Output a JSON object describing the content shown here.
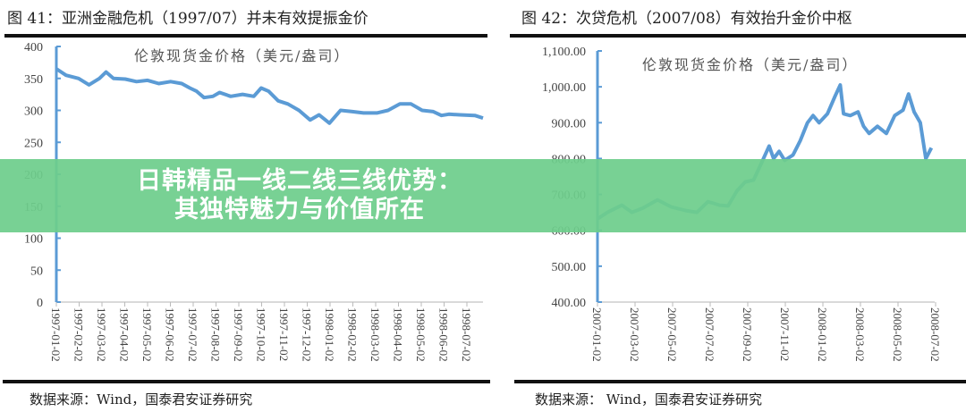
{
  "banner": {
    "text": "日韩精品一线二线三线优势：其独特魅力与价值所在"
  },
  "chart_data": [
    {
      "type": "line",
      "title": "图 41：亚洲金融危机（1997/07）并未有效提振金价",
      "subtitle": "伦敦现货金价格（美元/盎司）",
      "source": "数据来源：Wind，国泰君安证券研究",
      "ylim": [
        0,
        400
      ],
      "yticks": [
        "0",
        "50",
        "100",
        "150",
        "200",
        "250",
        "300",
        "350",
        "400"
      ],
      "xticks": [
        "1997-01-02",
        "1997-02-02",
        "1997-03-02",
        "1997-04-02",
        "1997-05-02",
        "1997-06-02",
        "1997-07-02",
        "1997-08-02",
        "1997-09-02",
        "1997-10-02",
        "1997-11-02",
        "1997-12-02",
        "1998-01-02",
        "1998-02-02",
        "1998-03-02",
        "1998-04-02",
        "1998-05-02",
        "1998-06-02",
        "1998-07-02"
      ],
      "color": "#5b9bd5",
      "points": [
        [
          "1997-01-02",
          365
        ],
        [
          "1997-01-15",
          355
        ],
        [
          "1997-02-01",
          350
        ],
        [
          "1997-02-15",
          340
        ],
        [
          "1997-03-01",
          350
        ],
        [
          "1997-03-10",
          360
        ],
        [
          "1997-03-20",
          350
        ],
        [
          "1997-04-05",
          349
        ],
        [
          "1997-04-20",
          345
        ],
        [
          "1997-05-05",
          347
        ],
        [
          "1997-05-20",
          342
        ],
        [
          "1997-06-05",
          345
        ],
        [
          "1997-06-20",
          342
        ],
        [
          "1997-07-01",
          335
        ],
        [
          "1997-07-10",
          330
        ],
        [
          "1997-07-20",
          320
        ],
        [
          "1997-08-01",
          322
        ],
        [
          "1997-08-10",
          328
        ],
        [
          "1997-08-25",
          322
        ],
        [
          "1997-09-10",
          325
        ],
        [
          "1997-09-25",
          322
        ],
        [
          "1997-10-05",
          335
        ],
        [
          "1997-10-15",
          330
        ],
        [
          "1997-10-28",
          315
        ],
        [
          "1997-11-10",
          310
        ],
        [
          "1997-11-25",
          300
        ],
        [
          "1997-12-10",
          285
        ],
        [
          "1997-12-22",
          293
        ],
        [
          "1998-01-05",
          280
        ],
        [
          "1998-01-20",
          300
        ],
        [
          "1998-02-05",
          298
        ],
        [
          "1998-02-20",
          296
        ],
        [
          "1998-03-10",
          296
        ],
        [
          "1998-03-25",
          300
        ],
        [
          "1998-04-10",
          310
        ],
        [
          "1998-04-25",
          310
        ],
        [
          "1998-05-10",
          300
        ],
        [
          "1998-05-25",
          298
        ],
        [
          "1998-06-05",
          292
        ],
        [
          "1998-06-15",
          294
        ],
        [
          "1998-06-30",
          293
        ],
        [
          "1998-07-20",
          292
        ],
        [
          "1998-07-31",
          288
        ]
      ]
    },
    {
      "type": "line",
      "title": "图 42：次贷危机（2007/08）有效抬升金价中枢",
      "subtitle": "伦敦现货金价格（美元/盎司）",
      "source": "数据来源： Wind，国泰君安证券研究",
      "ylim": [
        400,
        1100
      ],
      "yticks": [
        "400.00",
        "500.00",
        "600.00",
        "700.00",
        "800.00",
        "900.00",
        "1,000.00",
        "1,100.00"
      ],
      "xticks": [
        "2007-01-02",
        "2007-03-02",
        "2007-05-02",
        "2007-07-02",
        "2007-09-02",
        "2007-11-02",
        "2008-01-02",
        "2008-03-02",
        "2008-05-02",
        "2008-07-02"
      ],
      "color": "#5b9bd5",
      "points": [
        [
          "2007-01-02",
          632
        ],
        [
          "2007-01-20",
          650
        ],
        [
          "2007-02-15",
          670
        ],
        [
          "2007-03-05",
          650
        ],
        [
          "2007-03-25",
          662
        ],
        [
          "2007-04-20",
          685
        ],
        [
          "2007-05-15",
          665
        ],
        [
          "2007-06-10",
          655
        ],
        [
          "2007-06-30",
          650
        ],
        [
          "2007-07-20",
          680
        ],
        [
          "2007-08-10",
          670
        ],
        [
          "2007-08-25",
          668
        ],
        [
          "2007-09-10",
          710
        ],
        [
          "2007-09-25",
          735
        ],
        [
          "2007-10-10",
          740
        ],
        [
          "2007-10-25",
          790
        ],
        [
          "2007-11-07",
          835
        ],
        [
          "2007-11-15",
          800
        ],
        [
          "2007-11-25",
          820
        ],
        [
          "2007-12-05",
          795
        ],
        [
          "2007-12-20",
          810
        ],
        [
          "2008-01-02",
          850
        ],
        [
          "2008-01-15",
          900
        ],
        [
          "2008-01-25",
          920
        ],
        [
          "2008-02-05",
          900
        ],
        [
          "2008-02-20",
          925
        ],
        [
          "2008-03-05",
          975
        ],
        [
          "2008-03-14",
          1005
        ],
        [
          "2008-03-20",
          925
        ],
        [
          "2008-04-01",
          920
        ],
        [
          "2008-04-15",
          930
        ],
        [
          "2008-04-25",
          890
        ],
        [
          "2008-05-05",
          870
        ],
        [
          "2008-05-20",
          890
        ],
        [
          "2008-06-05",
          870
        ],
        [
          "2008-06-20",
          920
        ],
        [
          "2008-07-05",
          935
        ],
        [
          "2008-07-15",
          980
        ],
        [
          "2008-07-25",
          930
        ],
        [
          "2008-08-05",
          900
        ],
        [
          "2008-08-15",
          800
        ],
        [
          "2008-08-25",
          830
        ]
      ]
    }
  ]
}
